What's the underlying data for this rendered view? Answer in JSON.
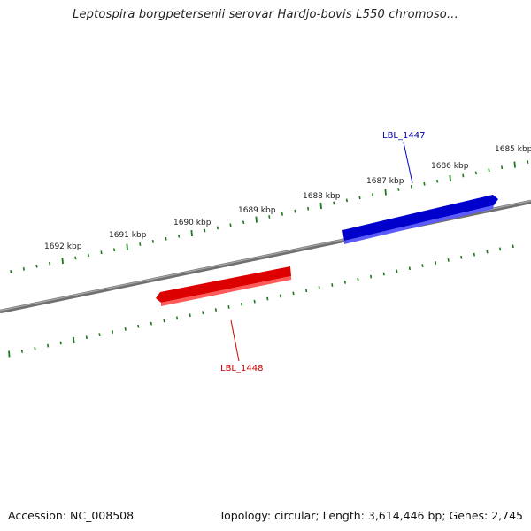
{
  "title": "Leptospira borgpetersenii serovar Hardjo-bovis L550 chromoso...",
  "accession_label": "Accession: NC_008508",
  "summary_label": "Topology: circular; Length: 3,614,446 bp; Genes: 2,745",
  "ticks": [
    "1692 kbp",
    "1691 kbp",
    "1690 kbp",
    "1689 kbp",
    "1688 kbp",
    "1687 kbp",
    "1686 kbp",
    "1685 kbp"
  ],
  "genes": [
    {
      "name": "LBL_1447",
      "strand": "forward",
      "color": "#0000dd"
    },
    {
      "name": "LBL_1448",
      "strand": "reverse",
      "color": "#ee0000"
    }
  ],
  "colors": {
    "backbone": "#808080",
    "ticks": "#1a7a1a"
  }
}
